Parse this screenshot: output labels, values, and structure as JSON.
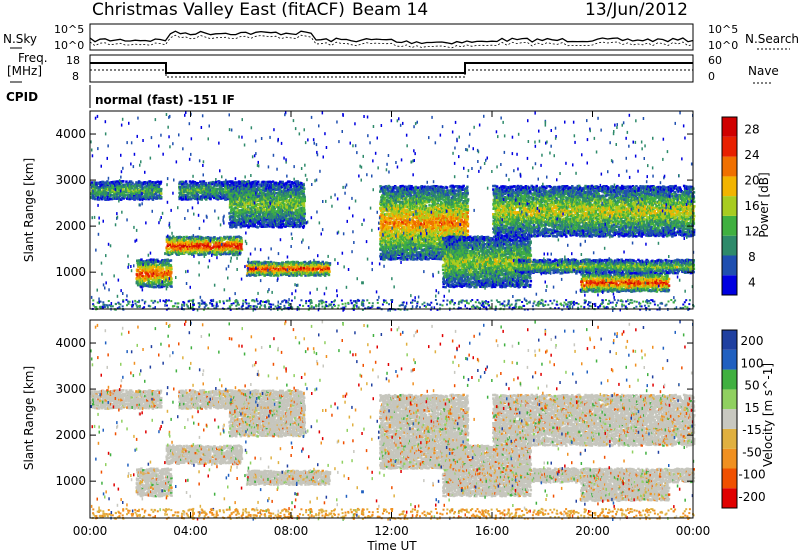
{
  "header": {
    "title": "Christmas Valley East (fitACF)",
    "beam": "Beam 14",
    "date": "13/Jun/2012"
  },
  "params": {
    "nsky_label": "N.Sky",
    "nsearch_label": "N.Search",
    "freq_label_1": "Freq.",
    "freq_label_2": "[MHz]",
    "nave_label": "Nave",
    "cpid_label": "CPID",
    "cpid_text": "normal (fast) -151 IF",
    "noise_ticks": [
      "10^5",
      "10^0"
    ],
    "freq_ticks": [
      "18",
      "8"
    ],
    "nave_ticks": [
      "60",
      "0"
    ]
  },
  "colors": {
    "power_scale": [
      "#0000e0",
      "#1f4fb0",
      "#2e8a6a",
      "#40b040",
      "#a8cc20",
      "#f2b400",
      "#f07000",
      "#e82000",
      "#d00000"
    ],
    "velocity_scale": [
      "#2040a0",
      "#2060c0",
      "#40b040",
      "#90d060",
      "#c8c8c0",
      "#e0b040",
      "#f09020",
      "#f05000",
      "#e00000"
    ],
    "scatter_gray": "#c6c6bd"
  },
  "chart_data": [
    {
      "type": "heatmap",
      "title": "Power",
      "xlabel": "",
      "ylabel": "Slant Range [km]",
      "x_ticks": [
        "00:00",
        "04:00",
        "08:00",
        "12:00",
        "16:00",
        "20:00",
        "00:00"
      ],
      "y_ticks": [
        1000,
        2000,
        3000,
        4000
      ],
      "ylim": [
        200,
        4500
      ],
      "colorbar_label": "Power [dB]",
      "colorbar_ticks": [
        4,
        8,
        12,
        16,
        20,
        24,
        28
      ],
      "bands": [
        {
          "t": [
            0.0,
            2.8
          ],
          "range": [
            2600,
            3000
          ],
          "level": 0.4
        },
        {
          "t": [
            1.8,
            3.2
          ],
          "range": [
            700,
            1300
          ],
          "level": 0.8
        },
        {
          "t": [
            3.0,
            6.0
          ],
          "range": [
            1400,
            1800
          ],
          "level": 0.9
        },
        {
          "t": [
            3.5,
            6.5
          ],
          "range": [
            2600,
            3000
          ],
          "level": 0.4
        },
        {
          "t": [
            5.5,
            8.5
          ],
          "range": [
            2000,
            3000
          ],
          "level": 0.45
        },
        {
          "t": [
            6.2,
            9.5
          ],
          "range": [
            950,
            1250
          ],
          "level": 0.85
        },
        {
          "t": [
            11.5,
            15.0
          ],
          "range": [
            1300,
            2900
          ],
          "level": 0.7
        },
        {
          "t": [
            14.0,
            17.5
          ],
          "range": [
            700,
            1800
          ],
          "level": 0.5
        },
        {
          "t": [
            16.0,
            24.0
          ],
          "range": [
            1800,
            2900
          ],
          "level": 0.55
        },
        {
          "t": [
            19.5,
            23.0
          ],
          "range": [
            600,
            1000
          ],
          "level": 0.85
        },
        {
          "t": [
            17.0,
            24.0
          ],
          "range": [
            1000,
            1300
          ],
          "level": 0.45
        }
      ]
    },
    {
      "type": "heatmap",
      "title": "Velocity",
      "xlabel": "Time UT",
      "ylabel": "Slant Range [km]",
      "x_ticks": [
        "00:00",
        "04:00",
        "08:00",
        "12:00",
        "16:00",
        "20:00",
        "00:00"
      ],
      "y_ticks": [
        1000,
        2000,
        3000,
        4000
      ],
      "ylim": [
        200,
        4500
      ],
      "colorbar_label": "Velocity [m s^-1]",
      "colorbar_ticks": [
        200,
        100,
        50,
        15,
        -15,
        -50,
        -100,
        -200
      ]
    }
  ]
}
